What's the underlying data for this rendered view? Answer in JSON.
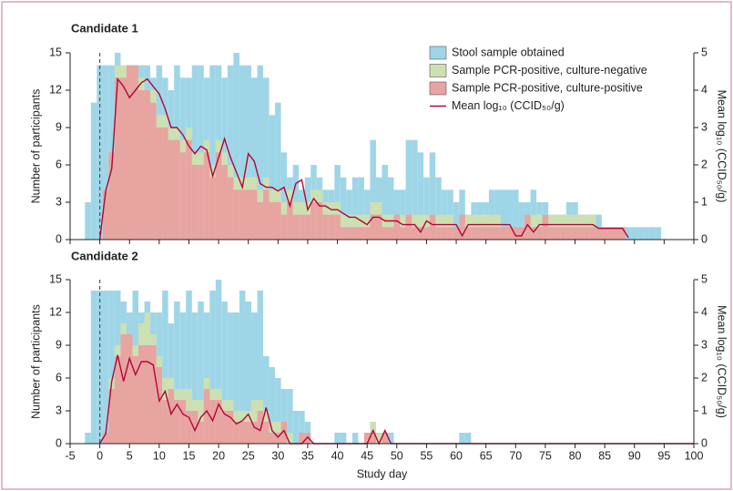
{
  "chart_data": [
    {
      "type": "bar",
      "title": "Candidate 1",
      "ylabel": "Number of participants",
      "y2label": "Mean log₁₀ (CCID₅₀/g)",
      "x": [
        -2,
        -1,
        0,
        1,
        2,
        3,
        4,
        5,
        6,
        7,
        8,
        9,
        10,
        11,
        12,
        13,
        14,
        15,
        16,
        17,
        18,
        19,
        20,
        21,
        22,
        23,
        24,
        25,
        26,
        27,
        28,
        29,
        30,
        31,
        32,
        33,
        34,
        35,
        36,
        37,
        38,
        39,
        40,
        41,
        42,
        43,
        44,
        45,
        46,
        47,
        48,
        49,
        50,
        51,
        52,
        53,
        54,
        55,
        56,
        57,
        58,
        59,
        60,
        61,
        62,
        63,
        64,
        65,
        66,
        67,
        68,
        69,
        70,
        71,
        72,
        73,
        74,
        75,
        76,
        77,
        78,
        79,
        80,
        81,
        82,
        83,
        84,
        85,
        86,
        87,
        88,
        89,
        90,
        91,
        92,
        93,
        94
      ],
      "series": [
        {
          "name": "Stool sample obtained",
          "color": "#9fd6e7",
          "values": [
            3,
            11,
            14,
            14,
            14,
            15,
            14,
            14,
            14,
            14,
            14,
            13,
            14,
            13,
            12,
            14,
            13,
            13,
            14,
            14,
            13,
            14,
            14,
            13,
            14,
            15,
            14,
            14,
            13,
            14,
            13,
            10,
            11,
            7,
            5,
            6,
            4,
            5,
            6,
            5,
            4,
            4,
            6,
            5,
            4,
            5,
            5,
            4,
            8,
            5,
            6,
            5,
            4,
            4,
            8,
            8,
            7,
            5,
            7,
            5,
            4,
            4,
            3,
            4,
            2,
            3,
            3,
            3,
            4,
            4,
            4,
            4,
            4,
            3,
            3,
            4,
            3,
            3,
            2,
            2,
            2,
            3,
            3,
            2,
            2,
            2,
            2,
            1,
            1,
            1,
            1,
            1,
            1,
            1,
            1,
            1,
            1
          ]
        },
        {
          "name": "Sample PCR-positive, culture-negative",
          "color": "#cde0b2",
          "values": [
            0,
            0,
            0,
            4,
            7,
            14,
            14,
            14,
            14,
            13,
            12,
            12,
            10,
            10,
            9,
            9,
            8,
            9,
            7,
            7,
            8,
            6,
            8,
            7,
            6,
            5,
            5,
            5,
            5,
            4,
            5,
            4,
            4,
            3,
            4,
            3,
            3,
            3,
            4,
            4,
            3,
            3,
            3,
            2,
            2,
            2,
            2,
            2,
            3,
            3,
            2,
            2,
            2,
            2,
            2,
            2,
            2,
            2,
            2,
            2,
            2,
            2,
            1,
            2,
            2,
            2,
            2,
            2,
            2,
            2,
            1,
            1,
            1,
            1,
            2,
            2,
            2,
            2,
            2,
            2,
            2,
            2,
            2,
            2,
            2,
            2,
            1,
            1,
            1,
            1,
            1,
            0,
            0,
            0,
            0,
            0,
            0
          ]
        },
        {
          "name": "Sample PCR-positive, culture-positive",
          "color": "#e8a4a0",
          "values": [
            0,
            0,
            0,
            4,
            7,
            13,
            13,
            14,
            14,
            12,
            12,
            11,
            9,
            9,
            8,
            8,
            7,
            8,
            6,
            6,
            7,
            5,
            7,
            6,
            5,
            4,
            4,
            4,
            4,
            3,
            4,
            3,
            3,
            2,
            3,
            2,
            2,
            2,
            3,
            3,
            2,
            2,
            2,
            1,
            1,
            1,
            1,
            1,
            2,
            2,
            1,
            1,
            2,
            1,
            2,
            1,
            1,
            1,
            2,
            1,
            1,
            1,
            1,
            2,
            1,
            1,
            1,
            1,
            1,
            1,
            1,
            1,
            1,
            1,
            2,
            1,
            1,
            2,
            1,
            1,
            1,
            1,
            1,
            1,
            1,
            1,
            1,
            1,
            1,
            1,
            1,
            0,
            0,
            0,
            0,
            0,
            0
          ]
        },
        {
          "name": "Mean log₁₀ (CCID₅₀/g)",
          "color": "#b0063a",
          "axis": "y2",
          "values": [
            null,
            null,
            0,
            1.3,
            1.9,
            4.3,
            4.1,
            3.8,
            4.0,
            4.2,
            4.3,
            4.1,
            3.9,
            3.5,
            3.0,
            3.0,
            2.8,
            2.5,
            2.3,
            2.5,
            2.4,
            1.7,
            2.2,
            2.7,
            2.2,
            1.8,
            1.4,
            2.3,
            2.1,
            1.5,
            1.4,
            1.4,
            1.3,
            1.4,
            0.9,
            1.5,
            1.6,
            0.8,
            1.1,
            0.9,
            0.9,
            0.8,
            0.8,
            0.7,
            0.6,
            0.6,
            0.5,
            0.4,
            0.6,
            0.6,
            0.5,
            0.5,
            0.5,
            0.4,
            0.4,
            0.4,
            0.2,
            0.5,
            0.4,
            0.4,
            0.4,
            0.4,
            0.4,
            0.1,
            0.4,
            0.4,
            0.4,
            0.4,
            0.4,
            0.4,
            0.4,
            0.4,
            0.1,
            0.1,
            0.4,
            0.2,
            0.4,
            0.4,
            0.4,
            0.4,
            0.4,
            0.4,
            0.4,
            0.4,
            0.4,
            0.4,
            0.3,
            0.3,
            0.3,
            0.3,
            0.3,
            0.05,
            null,
            null,
            null,
            null,
            null
          ]
        }
      ],
      "xlim": [
        -5,
        100
      ],
      "xticks": [
        -5,
        0,
        5,
        10,
        15,
        20,
        25,
        30,
        35,
        40,
        45,
        50,
        55,
        60,
        65,
        70,
        75,
        80,
        85,
        90,
        95,
        100
      ],
      "ylim": [
        0,
        15
      ],
      "yticks": [
        0,
        3,
        6,
        9,
        12,
        15
      ],
      "y2lim": [
        0,
        5
      ],
      "y2ticks": [
        0,
        1,
        2,
        3,
        4,
        5
      ],
      "vline": 0,
      "legend": "upper right"
    },
    {
      "type": "bar",
      "title": "Candidate 2",
      "xlabel": "Study day",
      "ylabel": "Number of participants",
      "y2label": "Mean log₁₀ (CCID₅₀/g)",
      "x": [
        -2,
        -1,
        0,
        1,
        2,
        3,
        4,
        5,
        6,
        7,
        8,
        9,
        10,
        11,
        12,
        13,
        14,
        15,
        16,
        17,
        18,
        19,
        20,
        21,
        22,
        23,
        24,
        25,
        26,
        27,
        28,
        29,
        30,
        31,
        32,
        33,
        34,
        35,
        36,
        37,
        38,
        39,
        40,
        41,
        42,
        43,
        44,
        45,
        46,
        47,
        48,
        49,
        50,
        51,
        52,
        53,
        54,
        55,
        56,
        57,
        58,
        59,
        60,
        61,
        62,
        63,
        64,
        65,
        66,
        67,
        68,
        69,
        70,
        71,
        72,
        73,
        74,
        75,
        76,
        77,
        78,
        79,
        80,
        81,
        82,
        83,
        84,
        85,
        86,
        87,
        88,
        89,
        90,
        91,
        92,
        93,
        94,
        95,
        96,
        97,
        98,
        99,
        100
      ],
      "series": [
        {
          "color": "#9fd6e7",
          "values": [
            1,
            14,
            14,
            14,
            14,
            14,
            13,
            12,
            14,
            12,
            13,
            12,
            12,
            14,
            11,
            13,
            12,
            14,
            12,
            13,
            12,
            14,
            15,
            13,
            12,
            12,
            14,
            13,
            12,
            14,
            8,
            7,
            6,
            5,
            5,
            3,
            3,
            2,
            0,
            0,
            0,
            0,
            1,
            1,
            0,
            1,
            0,
            1,
            2,
            1,
            1,
            1,
            0,
            0,
            0,
            0,
            0,
            0,
            0,
            0,
            0,
            0,
            0,
            1,
            1,
            0,
            0,
            0,
            0,
            0,
            0,
            0,
            0,
            0,
            0,
            0,
            0,
            0,
            0,
            0,
            0,
            0,
            0,
            0,
            0,
            0,
            0,
            0,
            0,
            0,
            0,
            0,
            0,
            0,
            0,
            0,
            0,
            0,
            0,
            0,
            0,
            0,
            0
          ]
        },
        {
          "color": "#cde0b2",
          "values": [
            0,
            0,
            0,
            1,
            6,
            9,
            11,
            10,
            9,
            11,
            12,
            10,
            8,
            6,
            6,
            5,
            5,
            5,
            4,
            4,
            6,
            5,
            5,
            4,
            4,
            3,
            3,
            3,
            4,
            4,
            3,
            2,
            2,
            2,
            1,
            0,
            1,
            1,
            0,
            0,
            0,
            0,
            0,
            0,
            0,
            0,
            0,
            1,
            2,
            1,
            1,
            0,
            0,
            0,
            0,
            0,
            0,
            0,
            0,
            0,
            0,
            0,
            0,
            0,
            0,
            0,
            0,
            0,
            0,
            0,
            0,
            0,
            0,
            0,
            0,
            0,
            0,
            0,
            0,
            0,
            0,
            0,
            0,
            0,
            0,
            0,
            0,
            0,
            0,
            0,
            0,
            0,
            0,
            0,
            0,
            0,
            0,
            0,
            0,
            0,
            0,
            0,
            0
          ]
        },
        {
          "color": "#e8a4a0",
          "values": [
            0,
            0,
            0,
            1,
            5,
            8,
            10,
            10,
            8,
            9,
            9,
            9,
            7,
            4,
            5,
            4,
            4,
            3,
            3,
            2,
            5,
            4,
            4,
            3,
            3,
            2,
            2,
            2,
            2,
            3,
            2,
            1,
            1,
            2,
            0,
            0,
            1,
            1,
            0,
            0,
            0,
            0,
            0,
            0,
            0,
            0,
            0,
            1,
            1,
            0,
            1,
            0,
            0,
            0,
            0,
            0,
            0,
            0,
            0,
            0,
            0,
            0,
            0,
            0,
            0,
            0,
            0,
            0,
            0,
            0,
            0,
            0,
            0,
            0,
            0,
            0,
            0,
            0,
            0,
            0,
            0,
            0,
            0,
            0,
            0,
            0,
            0,
            0,
            0,
            0,
            0,
            0,
            0,
            0,
            0,
            0,
            0,
            0,
            0,
            0,
            0,
            0,
            0
          ]
        },
        {
          "color": "#b0063a",
          "axis": "y2",
          "values": [
            null,
            null,
            0,
            0.3,
            1.9,
            2.7,
            1.9,
            2.6,
            2.1,
            2.5,
            2.5,
            2.4,
            1.3,
            1.6,
            0.9,
            1.2,
            0.9,
            0.8,
            0.4,
            0.8,
            1.0,
            0.7,
            1.2,
            0.9,
            0.8,
            0.6,
            0.7,
            0.9,
            0.5,
            0.4,
            1.1,
            0.4,
            0.2,
            0.4,
            0,
            0,
            0,
            0.2,
            0,
            0,
            0,
            0,
            0,
            0,
            0,
            0,
            0,
            0,
            0.4,
            0,
            0.4,
            0,
            0,
            0,
            0,
            0,
            0,
            0,
            0,
            0,
            0,
            0,
            0,
            0,
            0,
            0,
            0,
            0,
            0,
            0,
            0,
            0,
            0,
            0,
            0,
            0,
            0,
            0,
            0,
            0,
            0,
            0,
            0,
            0,
            0,
            0,
            0,
            0,
            0,
            0,
            0,
            0,
            0,
            0,
            0,
            0,
            0,
            0,
            0,
            0,
            0,
            0,
            0
          ]
        }
      ],
      "xlim": [
        -5,
        100
      ],
      "xticks": [
        -5,
        0,
        5,
        10,
        15,
        20,
        25,
        30,
        35,
        40,
        45,
        50,
        55,
        60,
        65,
        70,
        75,
        80,
        85,
        90,
        95,
        100
      ],
      "ylim": [
        0,
        15
      ],
      "yticks": [
        0,
        3,
        6,
        9,
        12,
        15
      ],
      "y2lim": [
        0,
        5
      ],
      "y2ticks": [
        0,
        1,
        2,
        3,
        4,
        5
      ],
      "vline": 0
    }
  ]
}
